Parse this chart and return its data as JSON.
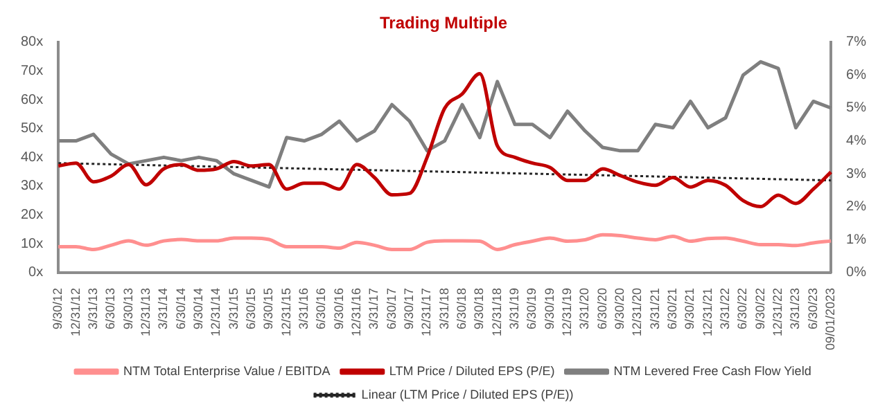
{
  "chart_data": {
    "type": "line",
    "title": "Trading Multiple",
    "categories": [
      "9/30/12",
      "12/31/12",
      "3/31/13",
      "6/30/13",
      "9/30/13",
      "12/31/13",
      "3/31/14",
      "6/30/14",
      "9/30/14",
      "12/31/14",
      "3/31/15",
      "6/30/15",
      "9/30/15",
      "12/31/15",
      "3/31/16",
      "6/30/16",
      "9/30/16",
      "12/31/16",
      "3/31/17",
      "6/30/17",
      "9/30/17",
      "12/31/17",
      "3/31/18",
      "6/30/18",
      "9/30/18",
      "12/31/18",
      "3/31/19",
      "6/30/19",
      "9/30/19",
      "12/31/19",
      "3/31/20",
      "6/30/20",
      "9/30/20",
      "12/31/20",
      "3/31/21",
      "6/30/21",
      "9/30/21",
      "12/31/21",
      "3/31/22",
      "6/30/22",
      "9/30/22",
      "12/31/22",
      "3/31/23",
      "6/30/23",
      "09/01/2023"
    ],
    "series": [
      {
        "name": "NTM Total Enterprise Value / EBITDA",
        "color": "#ff8f8f",
        "values": [
          9,
          9,
          8,
          9.5,
          11,
          9.5,
          11,
          11.5,
          11,
          11,
          12,
          12,
          11.5,
          9,
          9,
          9,
          8.5,
          10.5,
          9.5,
          8,
          8,
          10.5,
          11,
          11,
          10.9,
          8,
          9.7,
          10.9,
          12,
          10.9,
          11.4,
          13.1,
          12.8,
          12,
          11.4,
          12.6,
          10.9,
          11.8,
          12,
          10.9,
          9.7,
          9.7,
          9.4,
          10.3,
          11
        ]
      },
      {
        "name": "LTM Price / Diluted EPS (P/E)",
        "color": "#c00000",
        "values": [
          37,
          38,
          31.5,
          33.5,
          37.5,
          30.5,
          36,
          37.5,
          35.5,
          36,
          38.5,
          37,
          37.5,
          29,
          31,
          31,
          29,
          37.5,
          33,
          27,
          27.5,
          40,
          57,
          62,
          69,
          44,
          40,
          38,
          36.5,
          32,
          32,
          36,
          33.7,
          31.4,
          30.3,
          33,
          29.7,
          32,
          30.3,
          25,
          22.9,
          26.9,
          24,
          29,
          34.9
        ]
      },
      {
        "name": "NTM Levered Free Cash Flow Yield",
        "color": "#7f7f7f",
        "axis": "y2",
        "values": [
          4.0,
          4.0,
          4.2,
          3.6,
          3.3,
          3.4,
          3.5,
          3.4,
          3.5,
          3.4,
          3.0,
          2.8,
          2.6,
          4.1,
          4.0,
          4.2,
          4.6,
          4.0,
          4.3,
          5.1,
          4.6,
          3.7,
          4.0,
          5.1,
          4.1,
          5.8,
          4.5,
          4.5,
          4.1,
          4.9,
          4.3,
          3.8,
          3.7,
          3.7,
          4.5,
          4.4,
          5.2,
          4.4,
          4.7,
          6.0,
          6.4,
          6.2,
          4.4,
          5.2,
          5.0
        ]
      },
      {
        "name": "Linear (LTM Price / Diluted EPS (P/E))",
        "color": "#262626",
        "line_style": "dotted",
        "x": [
          "9/30/12",
          "09/01/2023"
        ],
        "values": [
          38,
          32
        ]
      }
    ],
    "ylim": [
      0,
      80
    ],
    "yticks": [
      {
        "value": 0,
        "label": "0x"
      },
      {
        "value": 10,
        "label": "10x"
      },
      {
        "value": 20,
        "label": "20x"
      },
      {
        "value": 30,
        "label": "30x"
      },
      {
        "value": 40,
        "label": "40x"
      },
      {
        "value": 50,
        "label": "50x"
      },
      {
        "value": 60,
        "label": "60x"
      },
      {
        "value": 70,
        "label": "70x"
      },
      {
        "value": 80,
        "label": "80x"
      }
    ],
    "y2lim": [
      0,
      7
    ],
    "y2ticks": [
      {
        "value": 0,
        "label": "0%"
      },
      {
        "value": 1,
        "label": "1%"
      },
      {
        "value": 2,
        "label": "2%"
      },
      {
        "value": 3,
        "label": "3%"
      },
      {
        "value": 4,
        "label": "4%"
      },
      {
        "value": 5,
        "label": "5%"
      },
      {
        "value": 6,
        "label": "6%"
      },
      {
        "value": 7,
        "label": "7%"
      }
    ],
    "grid": false,
    "legend": "bottom",
    "marker": "none"
  }
}
